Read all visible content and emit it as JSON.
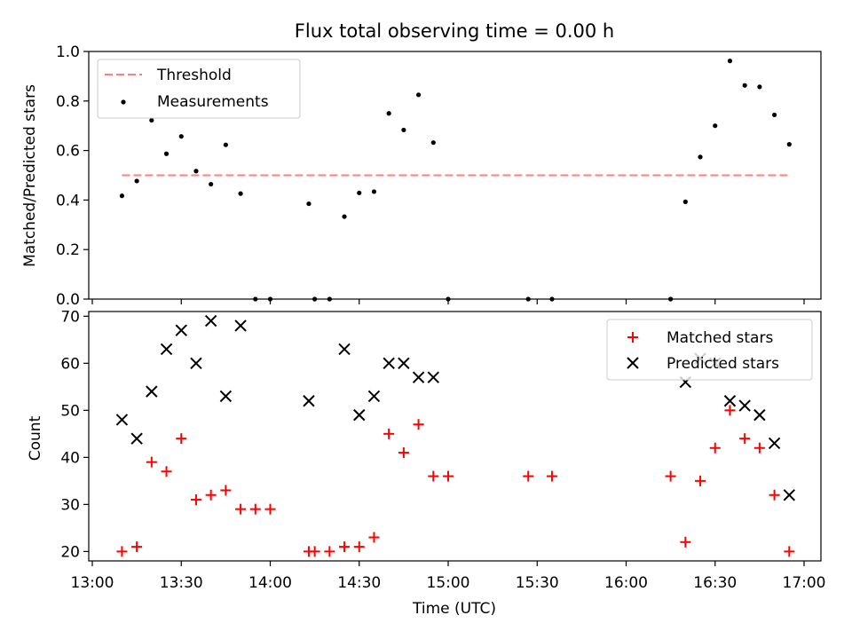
{
  "chart_data": [
    {
      "type": "scatter",
      "title": "Flux total observing time = 0.00 h",
      "xlabel": "",
      "ylabel": "Matched/Predicted stars",
      "xlim": [
        "13:00",
        "17:00"
      ],
      "ylim": [
        0,
        1.0
      ],
      "yticks": [
        0.0,
        0.2,
        0.4,
        0.6,
        0.8,
        1.0
      ],
      "ytick_labels": [
        "0.0",
        "0.2",
        "0.4",
        "0.6",
        "0.8",
        "1.0"
      ],
      "legend_position": "top-left",
      "threshold": {
        "name": "Threshold",
        "value": 0.5,
        "x_start": "13:10",
        "x_end": "16:55",
        "color": "#ff7f7f",
        "style": "dashed"
      },
      "series": [
        {
          "name": "Measurements",
          "color": "#000000",
          "marker": "dot",
          "points": [
            {
              "x": "13:10",
              "y": 0.417
            },
            {
              "x": "13:15",
              "y": 0.477
            },
            {
              "x": "13:20",
              "y": 0.722
            },
            {
              "x": "13:25",
              "y": 0.587
            },
            {
              "x": "13:30",
              "y": 0.657
            },
            {
              "x": "13:35",
              "y": 0.517
            },
            {
              "x": "13:40",
              "y": 0.464
            },
            {
              "x": "13:45",
              "y": 0.623
            },
            {
              "x": "13:50",
              "y": 0.426
            },
            {
              "x": "13:55",
              "y": 0.0
            },
            {
              "x": "14:00",
              "y": 0.0
            },
            {
              "x": "14:13",
              "y": 0.385
            },
            {
              "x": "14:15",
              "y": 0.0
            },
            {
              "x": "14:20",
              "y": 0.0
            },
            {
              "x": "14:25",
              "y": 0.333
            },
            {
              "x": "14:30",
              "y": 0.429
            },
            {
              "x": "14:35",
              "y": 0.434
            },
            {
              "x": "14:40",
              "y": 0.75
            },
            {
              "x": "14:45",
              "y": 0.683
            },
            {
              "x": "14:50",
              "y": 0.825
            },
            {
              "x": "14:55",
              "y": 0.632
            },
            {
              "x": "15:00",
              "y": 0.0
            },
            {
              "x": "15:27",
              "y": 0.0
            },
            {
              "x": "15:35",
              "y": 0.0
            },
            {
              "x": "16:15",
              "y": 0.0
            },
            {
              "x": "16:20",
              "y": 0.393
            },
            {
              "x": "16:25",
              "y": 0.574
            },
            {
              "x": "16:30",
              "y": 0.7
            },
            {
              "x": "16:35",
              "y": 0.962
            },
            {
              "x": "16:40",
              "y": 0.863
            },
            {
              "x": "16:45",
              "y": 0.857
            },
            {
              "x": "16:50",
              "y": 0.744
            },
            {
              "x": "16:55",
              "y": 0.625
            }
          ]
        }
      ]
    },
    {
      "type": "scatter",
      "title": "",
      "xlabel": "Time (UTC)",
      "ylabel": "Count",
      "xlim": [
        "13:00",
        "17:00"
      ],
      "xticks": [
        "13:00",
        "13:30",
        "14:00",
        "14:30",
        "15:00",
        "15:30",
        "16:00",
        "16:30",
        "17:00"
      ],
      "ylim": [
        18,
        71
      ],
      "yticks": [
        20,
        30,
        40,
        50,
        60,
        70
      ],
      "ytick_labels": [
        "20",
        "30",
        "40",
        "50",
        "60",
        "70"
      ],
      "legend_position": "top-right",
      "series": [
        {
          "name": "Matched stars",
          "color": "#ff0000",
          "marker": "plus",
          "points": [
            {
              "x": "13:10",
              "y": 20
            },
            {
              "x": "13:15",
              "y": 21
            },
            {
              "x": "13:20",
              "y": 39
            },
            {
              "x": "13:25",
              "y": 37
            },
            {
              "x": "13:30",
              "y": 44
            },
            {
              "x": "13:35",
              "y": 31
            },
            {
              "x": "13:40",
              "y": 32
            },
            {
              "x": "13:45",
              "y": 33
            },
            {
              "x": "13:50",
              "y": 29
            },
            {
              "x": "13:55",
              "y": 29
            },
            {
              "x": "14:00",
              "y": 29
            },
            {
              "x": "14:13",
              "y": 20
            },
            {
              "x": "14:15",
              "y": 20
            },
            {
              "x": "14:20",
              "y": 20
            },
            {
              "x": "14:25",
              "y": 21
            },
            {
              "x": "14:30",
              "y": 21
            },
            {
              "x": "14:35",
              "y": 23
            },
            {
              "x": "14:40",
              "y": 45
            },
            {
              "x": "14:45",
              "y": 41
            },
            {
              "x": "14:50",
              "y": 47
            },
            {
              "x": "14:55",
              "y": 36
            },
            {
              "x": "15:00",
              "y": 36
            },
            {
              "x": "15:27",
              "y": 36
            },
            {
              "x": "15:35",
              "y": 36
            },
            {
              "x": "16:15",
              "y": 36
            },
            {
              "x": "16:20",
              "y": 22
            },
            {
              "x": "16:25",
              "y": 35
            },
            {
              "x": "16:30",
              "y": 42
            },
            {
              "x": "16:35",
              "y": 50
            },
            {
              "x": "16:40",
              "y": 44
            },
            {
              "x": "16:45",
              "y": 42
            },
            {
              "x": "16:50",
              "y": 32
            },
            {
              "x": "16:55",
              "y": 20
            }
          ]
        },
        {
          "name": "Predicted stars",
          "color": "#000000",
          "marker": "x",
          "points": [
            {
              "x": "13:10",
              "y": 48
            },
            {
              "x": "13:15",
              "y": 44
            },
            {
              "x": "13:20",
              "y": 54
            },
            {
              "x": "13:25",
              "y": 63
            },
            {
              "x": "13:30",
              "y": 67
            },
            {
              "x": "13:35",
              "y": 60
            },
            {
              "x": "13:40",
              "y": 69
            },
            {
              "x": "13:45",
              "y": 53
            },
            {
              "x": "13:50",
              "y": 68
            },
            {
              "x": "14:13",
              "y": 52
            },
            {
              "x": "14:25",
              "y": 63
            },
            {
              "x": "14:30",
              "y": 49
            },
            {
              "x": "14:35",
              "y": 53
            },
            {
              "x": "14:40",
              "y": 60
            },
            {
              "x": "14:45",
              "y": 60
            },
            {
              "x": "14:50",
              "y": 57
            },
            {
              "x": "14:55",
              "y": 57
            },
            {
              "x": "16:20",
              "y": 56
            },
            {
              "x": "16:25",
              "y": 61
            },
            {
              "x": "16:30",
              "y": 60
            },
            {
              "x": "16:35",
              "y": 52
            },
            {
              "x": "16:40",
              "y": 51
            },
            {
              "x": "16:45",
              "y": 49
            },
            {
              "x": "16:50",
              "y": 43
            },
            {
              "x": "16:55",
              "y": 32
            }
          ]
        }
      ]
    }
  ]
}
